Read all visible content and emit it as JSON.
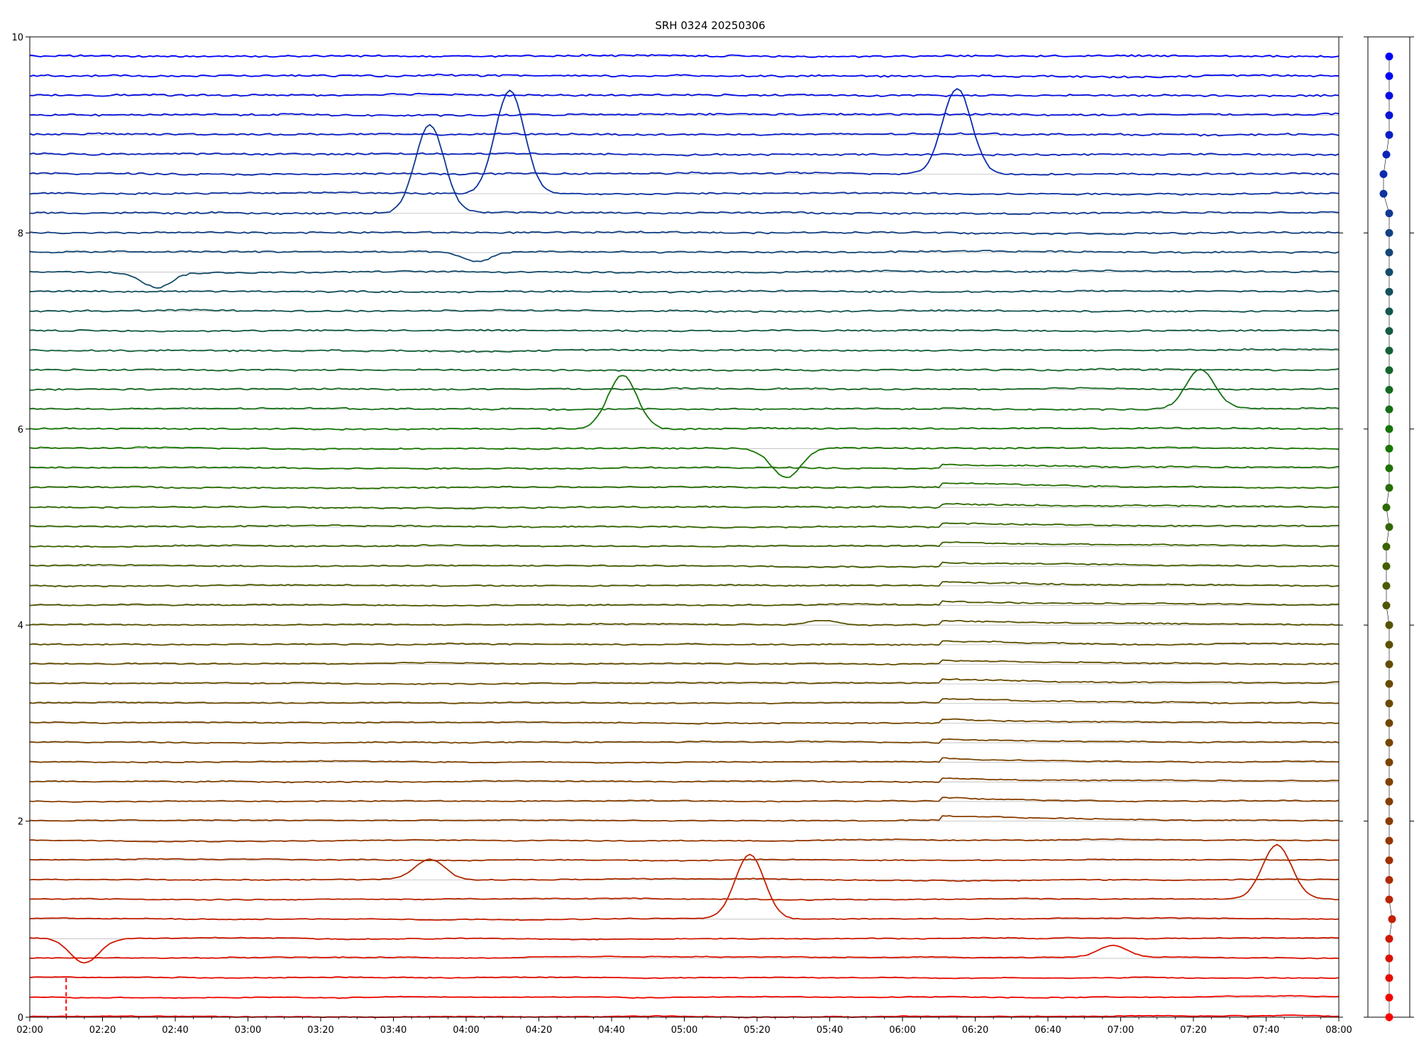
{
  "chart_data": [
    {
      "type": "line",
      "title": "SRH 0324 20250306",
      "xlabel": "",
      "ylabel": "",
      "xlim": [
        "02:00",
        "08:00"
      ],
      "ylim": [
        0,
        10
      ],
      "x_ticks": [
        "02:00",
        "02:20",
        "02:40",
        "03:00",
        "03:20",
        "03:40",
        "04:00",
        "04:20",
        "04:40",
        "05:00",
        "05:20",
        "05:40",
        "06:00",
        "06:20",
        "06:40",
        "07:00",
        "07:20",
        "07:40",
        "08:00"
      ],
      "y_ticks": [
        "0",
        "2",
        "4",
        "6",
        "8",
        "10"
      ],
      "grid": "horizontal lines at each trace baseline",
      "legend": "none",
      "color_start": "#ff0000",
      "color_end": "#0000ff",
      "series_count": 50,
      "series_baselines": [
        0,
        0.2,
        0.4,
        0.6,
        0.8,
        1.0,
        1.2,
        1.4,
        1.6,
        1.8,
        2.0,
        2.2,
        2.4,
        2.6,
        2.8,
        3.0,
        3.2,
        3.4,
        3.6,
        3.8,
        4.0,
        4.2,
        4.4,
        4.6,
        4.8,
        5.0,
        5.2,
        5.4,
        5.6,
        5.8,
        6.0,
        6.2,
        6.4,
        6.6,
        6.8,
        7.0,
        7.2,
        7.4,
        7.6,
        7.8,
        8.0,
        8.2,
        8.4,
        8.6,
        8.8,
        9.0,
        9.2,
        9.4,
        9.6,
        9.8
      ],
      "features": [
        {
          "series": 2,
          "time": "02:10",
          "value": 0.2,
          "style": "dashed-marker"
        },
        {
          "series": 3,
          "time": "06:58",
          "value": 0.72
        },
        {
          "series": 4,
          "time": "02:15",
          "value": 0.55
        },
        {
          "series": 5,
          "time": "05:18",
          "value": 1.65
        },
        {
          "series": 6,
          "time": "07:43",
          "value": 1.75
        },
        {
          "series": 7,
          "time": "03:50",
          "value": 1.6
        },
        {
          "series": 20,
          "time": "05:38",
          "value": 4.05
        },
        {
          "series": 29,
          "time": "05:28",
          "value": 5.5
        },
        {
          "series": 30,
          "time": "04:43",
          "value": 6.55
        },
        {
          "series": 31,
          "time": "07:22",
          "value": 6.6
        },
        {
          "series": 38,
          "time": "02:35",
          "value": 7.45
        },
        {
          "series": 39,
          "time": "04:03",
          "value": 7.7
        },
        {
          "series": 41,
          "time": "03:50",
          "value": 9.1
        },
        {
          "series": 42,
          "time": "04:12",
          "value": 9.45
        },
        {
          "series": 43,
          "time": "06:15",
          "value": 9.48
        }
      ]
    },
    {
      "type": "scatter",
      "title": "",
      "points_count": 50,
      "description_values": "trace baselines 0 to 9.8 with small horizontal offsets",
      "x_offsets": [
        0,
        0,
        0,
        0,
        0,
        0.01,
        0,
        0,
        0,
        0,
        0,
        0,
        0,
        0,
        0,
        0,
        0,
        0,
        0,
        0,
        0,
        -0.01,
        -0.01,
        -0.01,
        -0.01,
        0,
        -0.01,
        0,
        0,
        0,
        0,
        0,
        0,
        0,
        0,
        0,
        0,
        0,
        0,
        0,
        0,
        0,
        -0.02,
        -0.02,
        -0.01,
        0,
        0,
        0,
        0,
        0
      ]
    }
  ]
}
